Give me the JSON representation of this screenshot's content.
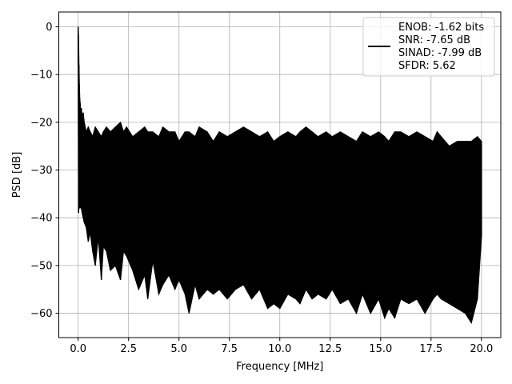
{
  "chart_data": {
    "type": "line",
    "title": "",
    "xlabel": "Frequency [MHz]",
    "ylabel": "PSD [dB]",
    "xlim": [
      -0.96,
      20.96
    ],
    "ylim": [
      -65.1,
      3.1
    ],
    "xticks": [
      0.0,
      2.5,
      5.0,
      7.5,
      10.0,
      12.5,
      15.0,
      17.5,
      20.0
    ],
    "xtick_labels": [
      "0.0",
      "2.5",
      "5.0",
      "7.5",
      "10.0",
      "12.5",
      "15.0",
      "17.5",
      "20.0"
    ],
    "yticks": [
      0,
      -10,
      -20,
      -30,
      -40,
      -50,
      -60
    ],
    "ytick_labels": [
      "0",
      "−10",
      "−20",
      "−30",
      "−40",
      "−50",
      "−60"
    ],
    "grid": true,
    "legend": {
      "placement": "upper-right",
      "entries": [
        "ENOB: -1.62 bits",
        "SNR: -7.65 dB",
        "SINAD: -7.99 dB",
        "SFDR: 5.62"
      ]
    },
    "series": [
      {
        "color": "#000000",
        "x": [
          0.0,
          0.02,
          0.04,
          0.06,
          0.08,
          0.1,
          0.13,
          0.16,
          0.2,
          0.25,
          0.3,
          0.4,
          0.5,
          0.6,
          0.72,
          0.85,
          1.0,
          1.15,
          1.25,
          1.4,
          1.6,
          1.85,
          2.1,
          2.25,
          2.4,
          2.7,
          3.0,
          3.3,
          3.45,
          3.7,
          4.0,
          4.2,
          4.5,
          4.8,
          5.0,
          5.3,
          5.5,
          5.8,
          6.0,
          6.4,
          6.7,
          7.0,
          7.4,
          7.8,
          8.2,
          8.6,
          9.0,
          9.4,
          9.7,
          10.0,
          10.4,
          10.8,
          11.0,
          11.3,
          11.6,
          11.9,
          12.3,
          12.6,
          13.0,
          13.4,
          13.8,
          14.1,
          14.5,
          14.9,
          15.2,
          15.4,
          15.7,
          16.0,
          16.4,
          16.8,
          17.2,
          17.6,
          17.8,
          18.0,
          18.4,
          18.8,
          19.2,
          19.5,
          19.8,
          20.0
        ],
        "y_top": [
          0,
          -2,
          -8,
          -12,
          -15,
          -16,
          -18,
          -17,
          -19,
          -18,
          -20,
          -22,
          -21,
          -22,
          -23,
          -21,
          -22,
          -23,
          -22,
          -21,
          -22,
          -21,
          -20,
          -22,
          -21,
          -23,
          -22,
          -21,
          -22,
          -22,
          -23,
          -21,
          -22,
          -22,
          -24,
          -22,
          -22,
          -23,
          -21,
          -22,
          -24,
          -22,
          -23,
          -22,
          -21,
          -22,
          -23,
          -22,
          -24,
          -23,
          -22,
          -23,
          -22,
          -21,
          -22,
          -23,
          -22,
          -23,
          -22,
          -23,
          -24,
          -22,
          -23,
          -22,
          -23,
          -24,
          -22,
          -22,
          -23,
          -22,
          -23,
          -24,
          -22,
          -23,
          -25,
          -24,
          -24,
          -24,
          -23,
          -24
        ],
        "y_bottom": [
          -8,
          -39,
          -38,
          -35,
          -37,
          -38,
          -36,
          -38,
          -39,
          -40,
          -41,
          -42,
          -45,
          -43,
          -47,
          -50,
          -44,
          -53,
          -46,
          -47,
          -51,
          -50,
          -53,
          -47,
          -48,
          -51,
          -55,
          -52,
          -57,
          -49,
          -56,
          -54,
          -52,
          -55,
          -53,
          -56,
          -60,
          -54,
          -57,
          -55,
          -56,
          -55,
          -57,
          -55,
          -54,
          -57,
          -55,
          -59,
          -58,
          -59,
          -56,
          -57,
          -58,
          -55,
          -57,
          -56,
          -57,
          -55,
          -58,
          -57,
          -60,
          -56,
          -60,
          -57,
          -61,
          -59,
          -61,
          -57,
          -58,
          -57,
          -60,
          -57,
          -56,
          -57,
          -58,
          -59,
          -60,
          -62,
          -57,
          -44
        ]
      }
    ]
  }
}
